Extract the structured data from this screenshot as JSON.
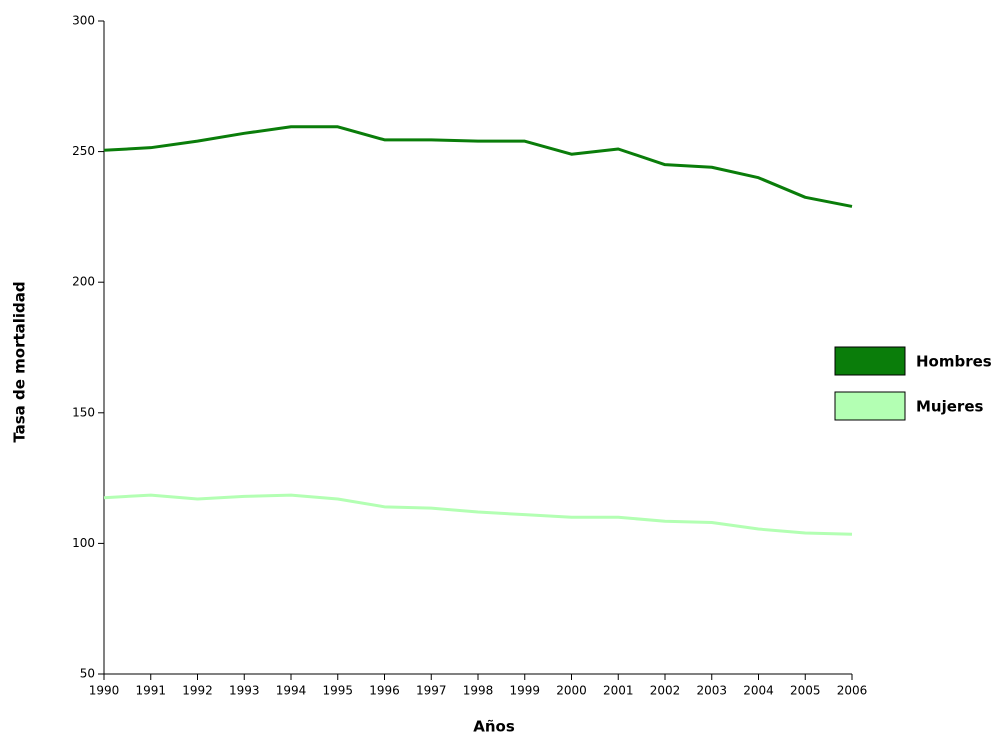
{
  "chart_data": {
    "type": "line",
    "x_label": "Años",
    "y_label": "Tasa de mortalidad",
    "x": [
      1990,
      1991,
      1992,
      1993,
      1994,
      1995,
      1996,
      1997,
      1998,
      1999,
      2000,
      2001,
      2002,
      2003,
      2004,
      2005,
      2006
    ],
    "series": [
      {
        "name": "Hombres",
        "color": "#0a7d0a",
        "values": [
          250.5,
          251.5,
          254,
          257,
          259.5,
          259.5,
          254.5,
          254.5,
          254,
          254,
          249,
          251,
          245,
          244,
          240,
          232.5,
          229
        ]
      },
      {
        "name": "Mujeres",
        "color": "#b3ffb3",
        "values": [
          117.5,
          118.5,
          117,
          118,
          118.5,
          117,
          114,
          113.5,
          112,
          111,
          110,
          110,
          108.5,
          108,
          105.5,
          104,
          103.5
        ]
      }
    ],
    "xlim": [
      1990,
      2006
    ],
    "xticks": [
      1990,
      1991,
      1992,
      1993,
      1994,
      1995,
      1996,
      1997,
      1998,
      1999,
      2000,
      2001,
      2002,
      2003,
      2004,
      2005,
      2006
    ],
    "ylim": [
      50,
      300
    ],
    "yticks": [
      50,
      100,
      150,
      200,
      250,
      300
    ],
    "grid": false,
    "legend": "right"
  }
}
